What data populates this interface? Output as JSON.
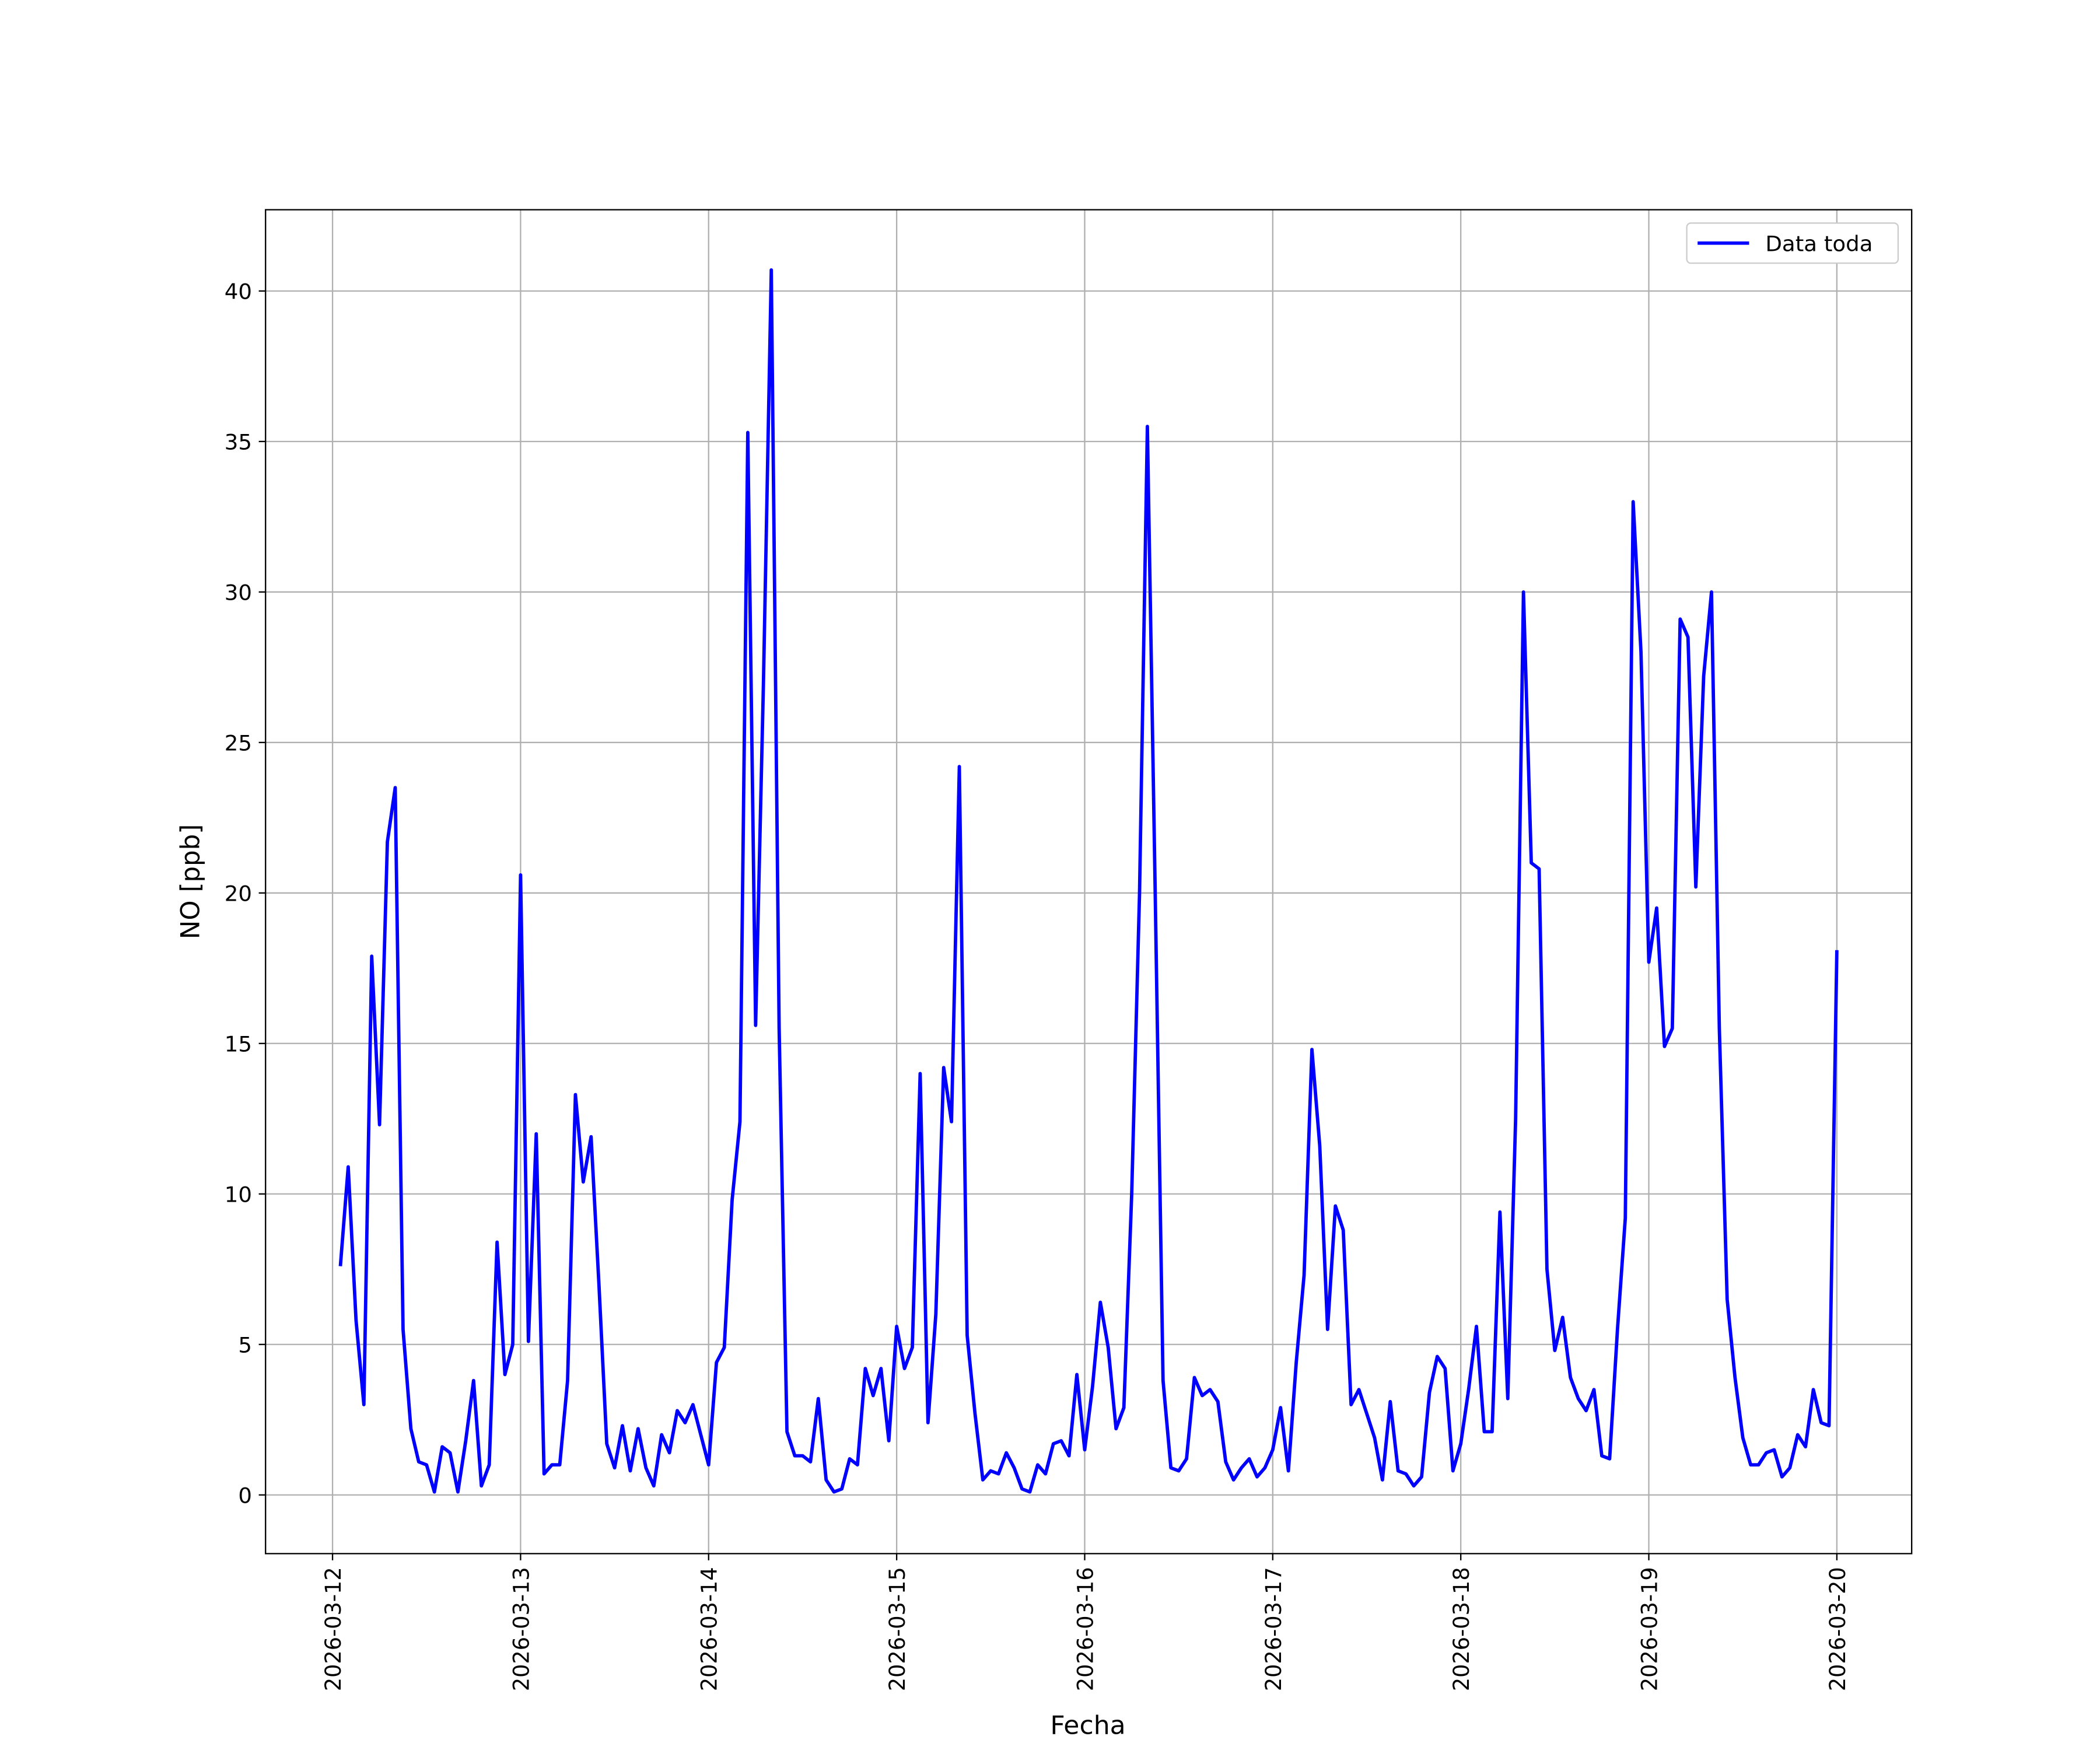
{
  "chart_data": {
    "type": "line",
    "x_label": "Fecha",
    "y_label": "NO [ppb]",
    "x": [
      "2026-03-12 01:00",
      "2026-03-12 02:00",
      "2026-03-12 03:00",
      "2026-03-12 04:00",
      "2026-03-12 05:00",
      "2026-03-12 06:00",
      "2026-03-12 07:00",
      "2026-03-12 08:00",
      "2026-03-12 09:00",
      "2026-03-12 10:00",
      "2026-03-12 11:00",
      "2026-03-12 12:00",
      "2026-03-12 13:00",
      "2026-03-12 14:00",
      "2026-03-12 15:00",
      "2026-03-12 16:00",
      "2026-03-12 17:00",
      "2026-03-12 18:00",
      "2026-03-12 19:00",
      "2026-03-12 20:00",
      "2026-03-12 21:00",
      "2026-03-12 22:00",
      "2026-03-12 23:00",
      "2026-03-13 00:00",
      "2026-03-13 01:00",
      "2026-03-13 02:00",
      "2026-03-13 03:00",
      "2026-03-13 04:00",
      "2026-03-13 05:00",
      "2026-03-13 06:00",
      "2026-03-13 07:00",
      "2026-03-13 08:00",
      "2026-03-13 09:00",
      "2026-03-13 10:00",
      "2026-03-13 11:00",
      "2026-03-13 12:00",
      "2026-03-13 13:00",
      "2026-03-13 14:00",
      "2026-03-13 15:00",
      "2026-03-13 16:00",
      "2026-03-13 17:00",
      "2026-03-13 18:00",
      "2026-03-13 19:00",
      "2026-03-13 20:00",
      "2026-03-13 21:00",
      "2026-03-13 22:00",
      "2026-03-13 23:00",
      "2026-03-14 00:00",
      "2026-03-14 01:00",
      "2026-03-14 02:00",
      "2026-03-14 03:00",
      "2026-03-14 04:00",
      "2026-03-14 05:00",
      "2026-03-14 06:00",
      "2026-03-14 07:00",
      "2026-03-14 08:00",
      "2026-03-14 09:00",
      "2026-03-14 10:00",
      "2026-03-14 11:00",
      "2026-03-14 12:00",
      "2026-03-14 13:00",
      "2026-03-14 14:00",
      "2026-03-14 15:00",
      "2026-03-14 16:00",
      "2026-03-14 17:00",
      "2026-03-14 18:00",
      "2026-03-14 19:00",
      "2026-03-14 20:00",
      "2026-03-14 21:00",
      "2026-03-14 22:00",
      "2026-03-14 23:00",
      "2026-03-15 00:00",
      "2026-03-15 01:00",
      "2026-03-15 02:00",
      "2026-03-15 03:00",
      "2026-03-15 04:00",
      "2026-03-15 05:00",
      "2026-03-15 06:00",
      "2026-03-15 07:00",
      "2026-03-15 08:00",
      "2026-03-15 09:00",
      "2026-03-15 10:00",
      "2026-03-15 11:00",
      "2026-03-15 12:00",
      "2026-03-15 13:00",
      "2026-03-15 14:00",
      "2026-03-15 15:00",
      "2026-03-15 16:00",
      "2026-03-15 17:00",
      "2026-03-15 18:00",
      "2026-03-15 19:00",
      "2026-03-15 20:00",
      "2026-03-15 21:00",
      "2026-03-15 22:00",
      "2026-03-15 23:00",
      "2026-03-16 00:00",
      "2026-03-16 01:00",
      "2026-03-16 02:00",
      "2026-03-16 03:00",
      "2026-03-16 04:00",
      "2026-03-16 05:00",
      "2026-03-16 06:00",
      "2026-03-16 07:00",
      "2026-03-16 08:00",
      "2026-03-16 09:00",
      "2026-03-16 10:00",
      "2026-03-16 11:00",
      "2026-03-16 12:00",
      "2026-03-16 13:00",
      "2026-03-16 14:00",
      "2026-03-16 15:00",
      "2026-03-16 16:00",
      "2026-03-16 17:00",
      "2026-03-16 18:00",
      "2026-03-16 19:00",
      "2026-03-16 20:00",
      "2026-03-16 21:00",
      "2026-03-16 22:00",
      "2026-03-16 23:00",
      "2026-03-17 00:00",
      "2026-03-17 01:00",
      "2026-03-17 02:00",
      "2026-03-17 03:00",
      "2026-03-17 04:00",
      "2026-03-17 05:00",
      "2026-03-17 06:00",
      "2026-03-17 07:00",
      "2026-03-17 08:00",
      "2026-03-17 09:00",
      "2026-03-17 10:00",
      "2026-03-17 11:00",
      "2026-03-17 12:00",
      "2026-03-17 13:00",
      "2026-03-17 14:00",
      "2026-03-17 15:00",
      "2026-03-17 16:00",
      "2026-03-17 17:00",
      "2026-03-17 18:00",
      "2026-03-17 19:00",
      "2026-03-17 20:00",
      "2026-03-17 21:00",
      "2026-03-17 22:00",
      "2026-03-17 23:00",
      "2026-03-18 00:00",
      "2026-03-18 01:00",
      "2026-03-18 02:00",
      "2026-03-18 03:00",
      "2026-03-18 04:00",
      "2026-03-18 05:00",
      "2026-03-18 06:00",
      "2026-03-18 07:00",
      "2026-03-18 08:00",
      "2026-03-18 09:00",
      "2026-03-18 10:00",
      "2026-03-18 11:00",
      "2026-03-18 12:00",
      "2026-03-18 13:00",
      "2026-03-18 14:00",
      "2026-03-18 15:00",
      "2026-03-18 16:00",
      "2026-03-18 17:00",
      "2026-03-18 18:00",
      "2026-03-18 19:00",
      "2026-03-18 20:00",
      "2026-03-18 21:00",
      "2026-03-18 22:00",
      "2026-03-18 23:00",
      "2026-03-19 00:00",
      "2026-03-19 01:00",
      "2026-03-19 02:00",
      "2026-03-19 03:00",
      "2026-03-19 04:00",
      "2026-03-19 05:00",
      "2026-03-19 06:00",
      "2026-03-19 07:00",
      "2026-03-19 08:00",
      "2026-03-19 09:00",
      "2026-03-19 10:00",
      "2026-03-19 11:00",
      "2026-03-19 12:00",
      "2026-03-19 13:00",
      "2026-03-19 14:00",
      "2026-03-19 15:00",
      "2026-03-19 16:00",
      "2026-03-19 17:00",
      "2026-03-19 18:00",
      "2026-03-19 19:00",
      "2026-03-19 20:00",
      "2026-03-19 21:00",
      "2026-03-19 22:00",
      "2026-03-19 23:00",
      "2026-03-20 00:00"
    ],
    "series": [
      {
        "name": "Data toda",
        "color": "#0000ff",
        "values": [
          7.6,
          10.9,
          5.8,
          3.0,
          17.9,
          12.3,
          21.7,
          23.5,
          5.5,
          2.2,
          1.1,
          1.0,
          0.1,
          1.6,
          1.4,
          0.1,
          1.8,
          3.8,
          0.3,
          1.0,
          8.4,
          4.0,
          5.0,
          20.6,
          5.1,
          12.0,
          0.7,
          1.0,
          1.0,
          3.8,
          13.3,
          10.4,
          11.9,
          7.0,
          1.7,
          0.9,
          2.3,
          0.8,
          2.2,
          0.9,
          0.3,
          2.0,
          1.4,
          2.8,
          2.4,
          3.0,
          2.0,
          1.0,
          4.4,
          4.9,
          9.8,
          12.4,
          35.3,
          15.6,
          27.0,
          40.7,
          15.5,
          2.1,
          1.3,
          1.3,
          1.1,
          3.2,
          0.5,
          0.1,
          0.2,
          1.2,
          1.0,
          4.2,
          3.3,
          4.2,
          1.8,
          5.6,
          4.2,
          4.9,
          14.0,
          2.4,
          6.0,
          14.2,
          12.4,
          24.2,
          5.3,
          2.7,
          0.5,
          0.8,
          0.7,
          1.4,
          0.9,
          0.2,
          0.1,
          1.0,
          0.7,
          1.7,
          1.8,
          1.3,
          4.0,
          1.5,
          3.6,
          6.4,
          4.9,
          2.2,
          2.9,
          10.0,
          20.0,
          35.5,
          20.0,
          3.8,
          0.9,
          0.8,
          1.2,
          3.9,
          3.3,
          3.5,
          3.1,
          1.1,
          0.5,
          0.9,
          1.2,
          0.6,
          0.9,
          1.5,
          2.9,
          0.8,
          4.4,
          7.3,
          14.8,
          11.6,
          5.5,
          9.6,
          8.8,
          3.0,
          3.5,
          2.7,
          1.9,
          0.5,
          3.1,
          0.8,
          0.7,
          0.3,
          0.6,
          3.4,
          4.6,
          4.2,
          0.8,
          1.7,
          3.5,
          5.6,
          2.1,
          2.1,
          9.4,
          3.2,
          12.5,
          30.0,
          21.0,
          20.8,
          7.5,
          4.8,
          5.9,
          3.9,
          3.2,
          2.8,
          3.5,
          1.3,
          1.2,
          5.5,
          9.2,
          33.0,
          28.0,
          17.7,
          19.5,
          14.9,
          15.5,
          29.1,
          28.5,
          20.2,
          27.2,
          30.0,
          15.5,
          6.5,
          3.9,
          1.9,
          1.0,
          1.0,
          1.4,
          1.5,
          0.6,
          0.9,
          2.0,
          1.6,
          3.5,
          2.4,
          2.3,
          18.1
        ]
      }
    ],
    "xlim": [
      "2026-03-11 15:27",
      "2026-03-20 09:33"
    ],
    "xticks": [
      "2026-03-12",
      "2026-03-13",
      "2026-03-14",
      "2026-03-15",
      "2026-03-16",
      "2026-03-17",
      "2026-03-18",
      "2026-03-19",
      "2026-03-20"
    ],
    "ylim": [
      -1.95,
      42.7
    ],
    "yticks": [
      0,
      5,
      10,
      15,
      20,
      25,
      30,
      35,
      40
    ],
    "grid": true,
    "legend": "upper right"
  }
}
